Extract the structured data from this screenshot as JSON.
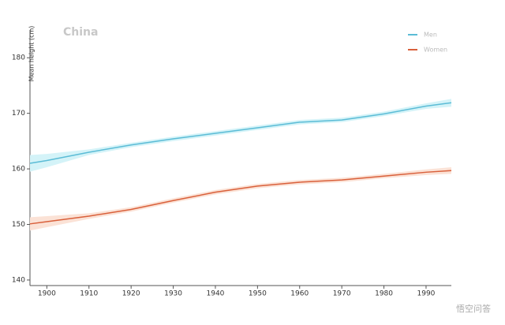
{
  "chart_data": {
    "type": "line",
    "title": "China",
    "y_label": "Mean height (cm)",
    "x": [
      1896,
      1900,
      1910,
      1920,
      1930,
      1940,
      1950,
      1960,
      1970,
      1980,
      1990,
      1996
    ],
    "xlim": [
      1896,
      1996
    ],
    "xticks": [
      1900,
      1910,
      1920,
      1930,
      1940,
      1950,
      1960,
      1970,
      1980,
      1990
    ],
    "ylim": [
      139,
      185
    ],
    "yticks": [
      140,
      150,
      160,
      170,
      180
    ],
    "series": [
      {
        "name": "Men",
        "color": "#5bbcd6",
        "band_color": "#d4f3f8",
        "values": [
          161.0,
          161.5,
          163.0,
          164.3,
          165.4,
          166.4,
          167.4,
          168.4,
          168.8,
          169.9,
          171.3,
          171.9
        ],
        "lower": [
          159.5,
          160.3,
          162.5,
          163.9,
          165.0,
          166.0,
          167.0,
          168.0,
          168.4,
          169.5,
          170.8,
          171.2
        ],
        "upper": [
          162.5,
          162.7,
          163.5,
          164.7,
          165.8,
          166.8,
          167.8,
          168.8,
          169.2,
          170.3,
          171.8,
          172.6
        ]
      },
      {
        "name": "Women",
        "color": "#d9603b",
        "band_color": "#fbe2d6",
        "values": [
          150.1,
          150.5,
          151.5,
          152.7,
          154.3,
          155.8,
          156.9,
          157.6,
          158.0,
          158.7,
          159.4,
          159.7
        ],
        "lower": [
          148.9,
          149.5,
          151.0,
          152.3,
          153.9,
          155.4,
          156.5,
          157.2,
          157.6,
          158.3,
          158.9,
          159.1
        ],
        "upper": [
          151.3,
          151.5,
          152.0,
          153.1,
          154.7,
          156.2,
          157.3,
          158.0,
          158.4,
          159.1,
          159.9,
          160.3
        ]
      }
    ],
    "legend": "upper right",
    "watermark": "悟空问答"
  }
}
